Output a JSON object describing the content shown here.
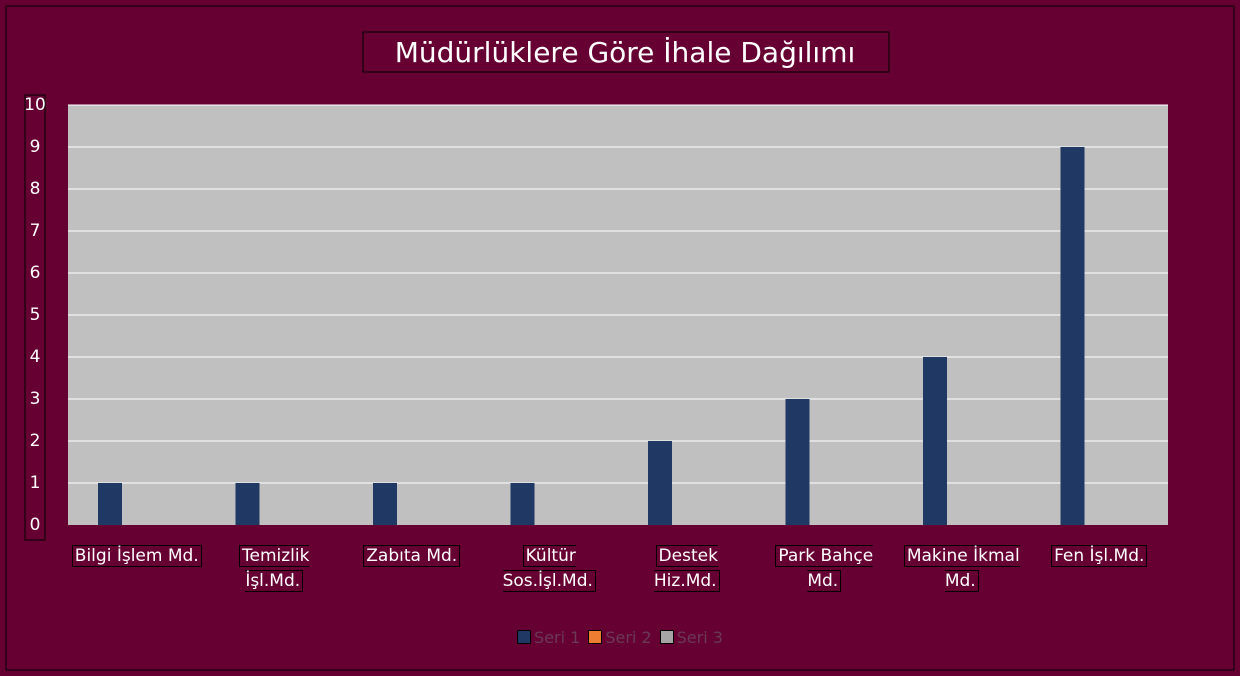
{
  "chart_data": {
    "type": "bar",
    "title": "Müdürlüklere Göre İhale Dağılımı",
    "categories": [
      "Bilgi İşlem Md.",
      "Temizlik İşl.Md.",
      "Zabıta Md.",
      "Kültür Sos.İşl.Md.",
      "Destek Hiz.Md.",
      "Park Bahçe Md.",
      "Makine İkmal Md.",
      "Fen İşl.Md."
    ],
    "series": [
      {
        "name": "Seri 1",
        "color": "#1f3864",
        "values": [
          1,
          1,
          1,
          1,
          2,
          3,
          4,
          9
        ]
      },
      {
        "name": "Seri 2",
        "color": "#ed7d31",
        "values": [
          null,
          null,
          null,
          null,
          null,
          null,
          null,
          null
        ]
      },
      {
        "name": "Seri 3",
        "color": "#a5a5a5",
        "values": [
          null,
          null,
          null,
          null,
          null,
          null,
          null,
          null
        ]
      }
    ],
    "ylim": [
      0,
      10
    ],
    "yticks": [
      0,
      1,
      2,
      3,
      4,
      5,
      6,
      7,
      8,
      9,
      10
    ],
    "grid": true,
    "legend": "bottom"
  }
}
